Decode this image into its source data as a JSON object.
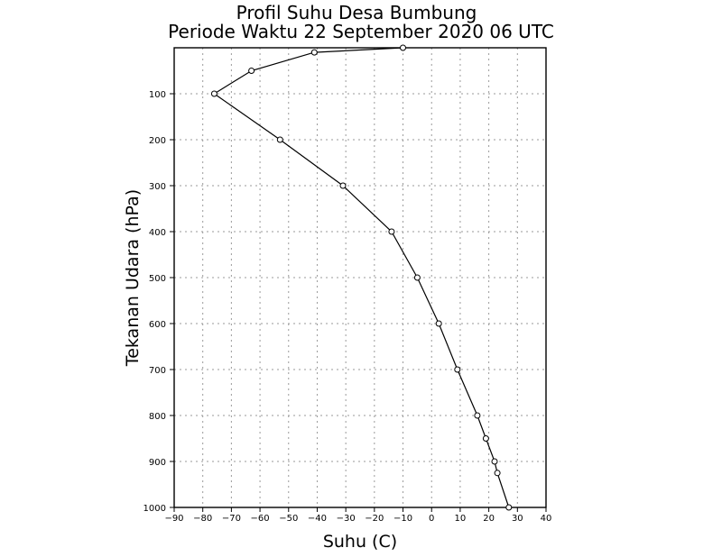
{
  "chart_data": {
    "type": "line",
    "title": "Profil Suhu Desa Bumbung",
    "subtitle": "Periode Waktu 22 September 2020 06 UTC",
    "xlabel": "Suhu (C)",
    "ylabel": "Tekanan Udara (hPa)",
    "xlim": [
      -90,
      40
    ],
    "ylim": [
      1000,
      0
    ],
    "x_ticks": [
      -90,
      -80,
      -70,
      -60,
      -50,
      -40,
      -30,
      -20,
      -10,
      0,
      10,
      20,
      30,
      40
    ],
    "x_tick_labels": [
      "−90",
      "−80",
      "−70",
      "−60",
      "−50",
      "−40",
      "−30",
      "−20",
      "−10",
      "0",
      "10",
      "20",
      "30",
      "40"
    ],
    "y_ticks": [
      100,
      200,
      300,
      400,
      500,
      600,
      700,
      800,
      900,
      1000
    ],
    "y_tick_labels": [
      "100",
      "200",
      "300",
      "400",
      "500",
      "600",
      "700",
      "800",
      "900",
      "1000"
    ],
    "grid": true,
    "series": [
      {
        "points": [
          {
            "pressure": 0,
            "temp": -10
          },
          {
            "pressure": 10,
            "temp": -41
          },
          {
            "pressure": 50,
            "temp": -63
          },
          {
            "pressure": 100,
            "temp": -76
          },
          {
            "pressure": 200,
            "temp": -53
          },
          {
            "pressure": 300,
            "temp": -31
          },
          {
            "pressure": 400,
            "temp": -14
          },
          {
            "pressure": 500,
            "temp": -5
          },
          {
            "pressure": 600,
            "temp": 2.5
          },
          {
            "pressure": 700,
            "temp": 9
          },
          {
            "pressure": 800,
            "temp": 16
          },
          {
            "pressure": 850,
            "temp": 19
          },
          {
            "pressure": 900,
            "temp": 22
          },
          {
            "pressure": 925,
            "temp": 23
          },
          {
            "pressure": 1000,
            "temp": 27
          }
        ]
      }
    ]
  }
}
